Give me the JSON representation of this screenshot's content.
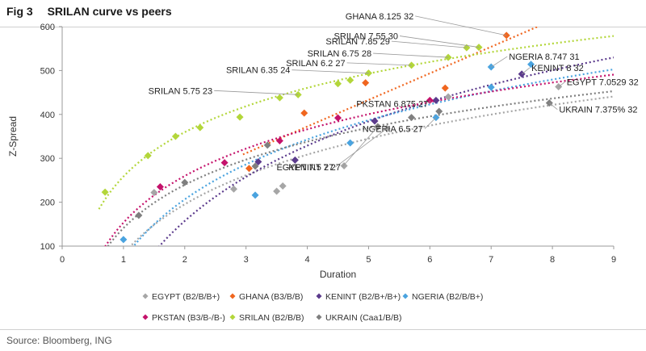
{
  "figure": {
    "number": "Fig 3",
    "title": "SRILAN curve vs peers"
  },
  "source": "Source: Bloomberg, ING",
  "colors": {
    "EGYPT": "#a6a6a6",
    "GHANA": "#f0661f",
    "KENINT": "#5b3a8c",
    "NGERIA": "#4aa3df",
    "PKSTAN": "#c4126b",
    "SRILAN": "#b3d63a",
    "UKRAIN": "#7f7f7f"
  },
  "chart_data": {
    "type": "scatter",
    "xlabel": "Duration",
    "ylabel": "Z-Spread",
    "xlim": [
      0,
      9
    ],
    "ylim": [
      100,
      600
    ],
    "xticks": [
      "0",
      "1",
      "2",
      "3",
      "4",
      "5",
      "6",
      "7",
      "8",
      "9"
    ],
    "yticks": [
      "100",
      "200",
      "300",
      "400",
      "500",
      "600"
    ],
    "grid": false,
    "legend_position": "bottom",
    "series": [
      {
        "name": "EGYPT (B2/B/B+)",
        "key": "EGYPT",
        "trendline": "log",
        "points": [
          [
            1.5,
            222
          ],
          [
            2.8,
            230
          ],
          [
            3.5,
            225
          ],
          [
            3.6,
            237
          ],
          [
            4.6,
            283
          ],
          [
            5.3,
            368
          ],
          [
            6.3,
            440
          ],
          [
            8.1,
            463
          ]
        ]
      },
      {
        "name": "GHANA (B3/B/B)",
        "key": "GHANA",
        "trendline": "linear",
        "points": [
          [
            3.05,
            277
          ],
          [
            3.95,
            403
          ],
          [
            4.95,
            472
          ],
          [
            6.25,
            460
          ],
          [
            7.25,
            580
          ]
        ]
      },
      {
        "name": "KENINT (B2/B+/B+)",
        "key": "KENINT",
        "trendline": "log",
        "points": [
          [
            3.2,
            292
          ],
          [
            3.8,
            296
          ],
          [
            5.1,
            385
          ],
          [
            6.1,
            432
          ],
          [
            7.5,
            492
          ]
        ]
      },
      {
        "name": "NGERIA (B2/B/B+)",
        "key": "NGERIA",
        "trendline": "log",
        "points": [
          [
            1.0,
            115
          ],
          [
            3.15,
            216
          ],
          [
            4.7,
            335
          ],
          [
            6.1,
            393
          ],
          [
            7.0,
            462
          ],
          [
            7.0,
            508
          ],
          [
            7.65,
            514
          ]
        ]
      },
      {
        "name": "PKSTAN (B3/B-/B-)",
        "key": "PKSTAN",
        "trendline": "log",
        "points": [
          [
            1.6,
            235
          ],
          [
            2.65,
            290
          ],
          [
            3.55,
            340
          ],
          [
            4.5,
            392
          ],
          [
            6.0,
            432
          ]
        ]
      },
      {
        "name": "SRILAN (B2/B/B)",
        "key": "SRILAN",
        "trendline": "log",
        "points": [
          [
            0.7,
            223
          ],
          [
            1.4,
            306
          ],
          [
            1.85,
            350
          ],
          [
            2.25,
            370
          ],
          [
            2.9,
            394
          ],
          [
            3.55,
            438
          ],
          [
            3.85,
            445
          ],
          [
            4.5,
            470
          ],
          [
            4.7,
            478
          ],
          [
            5.0,
            494
          ],
          [
            5.7,
            512
          ],
          [
            6.3,
            530
          ],
          [
            6.6,
            552
          ],
          [
            6.8,
            553
          ]
        ]
      },
      {
        "name": "UKRAIN (Caa1/B/B)",
        "key": "UKRAIN",
        "trendline": "log",
        "points": [
          [
            1.25,
            170
          ],
          [
            2.0,
            245
          ],
          [
            3.15,
            282
          ],
          [
            3.35,
            330
          ],
          [
            5.15,
            372
          ],
          [
            5.7,
            393
          ],
          [
            6.15,
            407
          ],
          [
            7.95,
            426
          ]
        ]
      }
    ],
    "annotations": [
      {
        "text": "GHANA 8.125 32",
        "x": 7.25,
        "y": 580
      },
      {
        "text": "SRILAN 7.55 30",
        "x": 6.8,
        "y": 553
      },
      {
        "text": "SRILAN 7.85 29",
        "x": 6.6,
        "y": 552
      },
      {
        "text": "SRILAN 6.75 28",
        "x": 6.3,
        "y": 530
      },
      {
        "text": "SRILAN 6.2 27",
        "x": 5.7,
        "y": 512
      },
      {
        "text": "SRILAN 6.35 24",
        "x": 5.0,
        "y": 494
      },
      {
        "text": "SRILAN 5.75 23",
        "x": 3.85,
        "y": 445
      },
      {
        "text": "NGERIA 8.747 31",
        "x": 7.0,
        "y": 508
      },
      {
        "text": "KENINT 8 32",
        "x": 7.5,
        "y": 492
      },
      {
        "text": "EGYPT 7.0529 32",
        "x": 8.1,
        "y": 463
      },
      {
        "text": "UKRAIN 7.375% 32",
        "x": 7.95,
        "y": 426
      },
      {
        "text": "PKSTAN 6.875 27",
        "x": 6.0,
        "y": 432
      },
      {
        "text": "NGERIA 6.5 27",
        "x": 6.1,
        "y": 393
      },
      {
        "text": "EGYPT 7.5 27",
        "x": 5.3,
        "y": 368
      },
      {
        "text": "KENINT 7 27",
        "x": 5.15,
        "y": 372
      }
    ]
  }
}
